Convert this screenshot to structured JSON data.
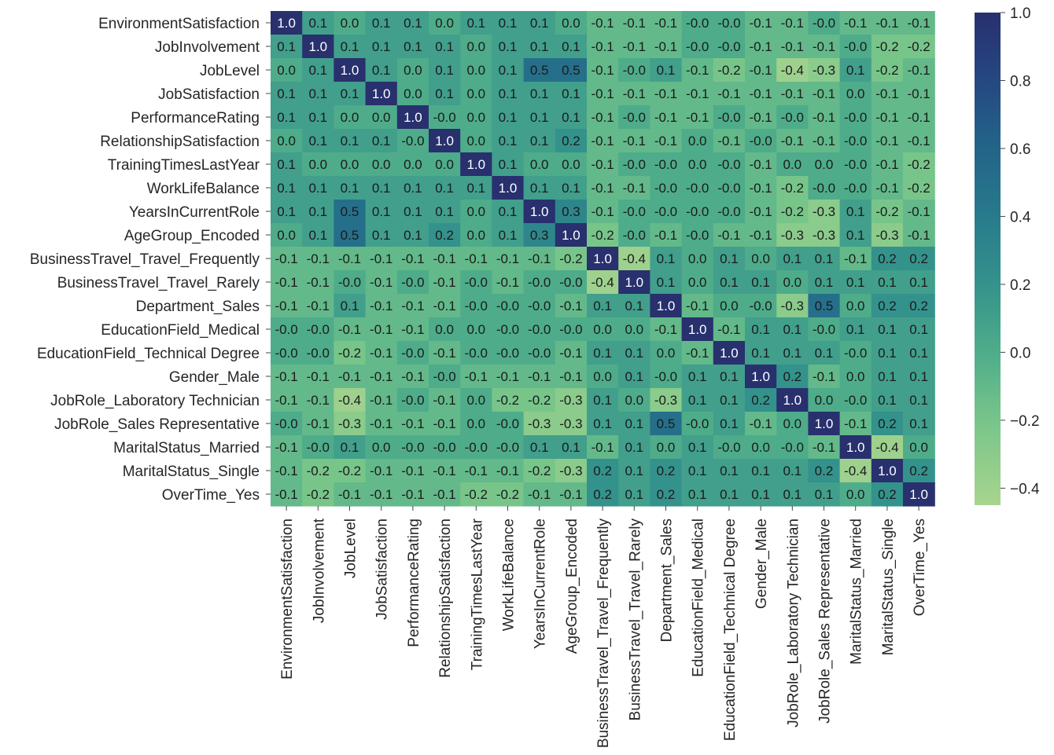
{
  "chart_data": {
    "type": "heatmap",
    "title": "",
    "xlabel": "",
    "ylabel": "",
    "labels": [
      "EnvironmentSatisfaction",
      "JobInvolvement",
      "JobLevel",
      "JobSatisfaction",
      "PerformanceRating",
      "RelationshipSatisfaction",
      "TrainingTimesLastYear",
      "WorkLifeBalance",
      "YearsInCurrentRole",
      "AgeGroup_Encoded",
      "BusinessTravel_Travel_Frequently",
      "BusinessTravel_Travel_Rarely",
      "Department_Sales",
      "EducationField_Medical",
      "EducationField_Technical Degree",
      "Gender_Male",
      "JobRole_Laboratory Technician",
      "JobRole_Sales Representative",
      "MaritalStatus_Married",
      "MaritalStatus_Single",
      "OverTime_Yes"
    ],
    "cell_text": [
      [
        "1.0",
        "0.1",
        "0.0",
        "0.1",
        "0.1",
        "0.0",
        "0.1",
        "0.1",
        "0.1",
        "0.0",
        "-0.1",
        "-0.1",
        "-0.1",
        "-0.0",
        "-0.0",
        "-0.1",
        "-0.1",
        "-0.0",
        "-0.1",
        "-0.1",
        "-0.1"
      ],
      [
        "0.1",
        "1.0",
        "0.1",
        "0.1",
        "0.1",
        "0.1",
        "0.0",
        "0.1",
        "0.1",
        "0.1",
        "-0.1",
        "-0.1",
        "-0.1",
        "-0.0",
        "-0.0",
        "-0.1",
        "-0.1",
        "-0.1",
        "-0.0",
        "-0.2",
        "-0.2"
      ],
      [
        "0.0",
        "0.1",
        "1.0",
        "0.1",
        "0.0",
        "0.1",
        "0.0",
        "0.1",
        "0.5",
        "0.5",
        "-0.1",
        "-0.0",
        "0.1",
        "-0.1",
        "-0.2",
        "-0.1",
        "-0.4",
        "-0.3",
        "0.1",
        "-0.2",
        "-0.1"
      ],
      [
        "0.1",
        "0.1",
        "0.1",
        "1.0",
        "0.0",
        "0.1",
        "0.0",
        "0.1",
        "0.1",
        "0.1",
        "-0.1",
        "-0.1",
        "-0.1",
        "-0.1",
        "-0.1",
        "-0.1",
        "-0.1",
        "-0.1",
        "0.0",
        "-0.1",
        "-0.1"
      ],
      [
        "0.1",
        "0.1",
        "0.0",
        "0.0",
        "1.0",
        "-0.0",
        "0.0",
        "0.1",
        "0.1",
        "0.1",
        "-0.1",
        "-0.0",
        "-0.1",
        "-0.1",
        "-0.0",
        "-0.1",
        "-0.0",
        "-0.1",
        "-0.0",
        "-0.1",
        "-0.1"
      ],
      [
        "0.0",
        "0.1",
        "0.1",
        "0.1",
        "-0.0",
        "1.0",
        "0.0",
        "0.1",
        "0.1",
        "0.2",
        "-0.1",
        "-0.1",
        "-0.1",
        "0.0",
        "-0.1",
        "-0.0",
        "-0.1",
        "-0.1",
        "-0.0",
        "-0.1",
        "-0.1"
      ],
      [
        "0.1",
        "0.0",
        "0.0",
        "0.0",
        "0.0",
        "0.0",
        "1.0",
        "0.1",
        "0.0",
        "0.0",
        "-0.1",
        "-0.0",
        "-0.0",
        "0.0",
        "-0.0",
        "-0.1",
        "0.0",
        "0.0",
        "-0.0",
        "-0.1",
        "-0.2"
      ],
      [
        "0.1",
        "0.1",
        "0.1",
        "0.1",
        "0.1",
        "0.1",
        "0.1",
        "1.0",
        "0.1",
        "0.1",
        "-0.1",
        "-0.1",
        "-0.0",
        "-0.0",
        "-0.0",
        "-0.1",
        "-0.2",
        "-0.0",
        "-0.0",
        "-0.1",
        "-0.2"
      ],
      [
        "0.1",
        "0.1",
        "0.5",
        "0.1",
        "0.1",
        "0.1",
        "0.0",
        "0.1",
        "1.0",
        "0.3",
        "-0.1",
        "-0.0",
        "-0.0",
        "-0.0",
        "-0.0",
        "-0.1",
        "-0.2",
        "-0.3",
        "0.1",
        "-0.2",
        "-0.1"
      ],
      [
        "0.0",
        "0.1",
        "0.5",
        "0.1",
        "0.1",
        "0.2",
        "0.0",
        "0.1",
        "0.3",
        "1.0",
        "-0.2",
        "-0.0",
        "-0.1",
        "-0.0",
        "-0.1",
        "-0.1",
        "-0.3",
        "-0.3",
        "0.1",
        "-0.3",
        "-0.1"
      ],
      [
        "-0.1",
        "-0.1",
        "-0.1",
        "-0.1",
        "-0.1",
        "-0.1",
        "-0.1",
        "-0.1",
        "-0.1",
        "-0.2",
        "1.0",
        "-0.4",
        "0.1",
        "0.0",
        "0.1",
        "0.0",
        "0.1",
        "0.1",
        "-0.1",
        "0.2",
        "0.2"
      ],
      [
        "-0.1",
        "-0.1",
        "-0.0",
        "-0.1",
        "-0.0",
        "-0.1",
        "-0.0",
        "-0.1",
        "-0.0",
        "-0.0",
        "-0.4",
        "1.0",
        "0.1",
        "0.0",
        "0.1",
        "0.1",
        "0.0",
        "0.1",
        "0.1",
        "0.1",
        "0.1"
      ],
      [
        "-0.1",
        "-0.1",
        "0.1",
        "-0.1",
        "-0.1",
        "-0.1",
        "-0.0",
        "-0.0",
        "-0.0",
        "-0.1",
        "0.1",
        "0.1",
        "1.0",
        "-0.1",
        "0.0",
        "-0.0",
        "-0.3",
        "0.5",
        "0.0",
        "0.2",
        "0.2"
      ],
      [
        "-0.0",
        "-0.0",
        "-0.1",
        "-0.1",
        "-0.1",
        "0.0",
        "0.0",
        "-0.0",
        "-0.0",
        "-0.0",
        "0.0",
        "0.0",
        "-0.1",
        "1.0",
        "-0.1",
        "0.1",
        "0.1",
        "-0.0",
        "0.1",
        "0.1",
        "0.1"
      ],
      [
        "-0.0",
        "-0.0",
        "-0.2",
        "-0.1",
        "-0.0",
        "-0.1",
        "-0.0",
        "-0.0",
        "-0.0",
        "-0.1",
        "0.1",
        "0.1",
        "0.0",
        "-0.1",
        "1.0",
        "0.1",
        "0.1",
        "0.1",
        "-0.0",
        "0.1",
        "0.1"
      ],
      [
        "-0.1",
        "-0.1",
        "-0.1",
        "-0.1",
        "-0.1",
        "-0.0",
        "-0.1",
        "-0.1",
        "-0.1",
        "-0.1",
        "0.0",
        "0.1",
        "-0.0",
        "0.1",
        "0.1",
        "1.0",
        "0.2",
        "-0.1",
        "0.0",
        "0.1",
        "0.1"
      ],
      [
        "-0.1",
        "-0.1",
        "-0.4",
        "-0.1",
        "-0.0",
        "-0.1",
        "0.0",
        "-0.2",
        "-0.2",
        "-0.3",
        "0.1",
        "0.0",
        "-0.3",
        "0.1",
        "0.1",
        "0.2",
        "1.0",
        "0.0",
        "-0.0",
        "0.1",
        "0.1"
      ],
      [
        "-0.0",
        "-0.1",
        "-0.3",
        "-0.1",
        "-0.1",
        "-0.1",
        "0.0",
        "-0.0",
        "-0.3",
        "-0.3",
        "0.1",
        "0.1",
        "0.5",
        "-0.0",
        "0.1",
        "-0.1",
        "0.0",
        "1.0",
        "-0.1",
        "0.2",
        "0.1"
      ],
      [
        "-0.1",
        "-0.0",
        "0.1",
        "0.0",
        "-0.0",
        "-0.0",
        "-0.0",
        "-0.0",
        "0.1",
        "0.1",
        "-0.1",
        "0.1",
        "0.0",
        "0.1",
        "-0.0",
        "0.0",
        "-0.0",
        "-0.1",
        "1.0",
        "-0.4",
        "0.0"
      ],
      [
        "-0.1",
        "-0.2",
        "-0.2",
        "-0.1",
        "-0.1",
        "-0.1",
        "-0.1",
        "-0.1",
        "-0.2",
        "-0.3",
        "0.2",
        "0.1",
        "0.2",
        "0.1",
        "0.1",
        "0.1",
        "0.1",
        "0.2",
        "-0.4",
        "1.0",
        "0.2"
      ],
      [
        "-0.1",
        "-0.2",
        "-0.1",
        "-0.1",
        "-0.1",
        "-0.1",
        "-0.2",
        "-0.2",
        "-0.1",
        "-0.1",
        "0.2",
        "0.1",
        "0.2",
        "0.1",
        "0.1",
        "0.1",
        "0.1",
        "0.1",
        "0.0",
        "0.2",
        "1.0"
      ]
    ],
    "colorbar": {
      "min": -0.45,
      "max": 1.0,
      "ticks": [
        "1.0",
        "0.8",
        "0.6",
        "0.4",
        "0.2",
        "0.0",
        "−0.2",
        "−0.4"
      ],
      "tick_values": [
        1.0,
        0.8,
        0.6,
        0.4,
        0.2,
        0.0,
        -0.2,
        -0.4
      ]
    },
    "colormap": "YlGnBu-like (light green to dark navy)",
    "color_low": "#a8d48e",
    "color_high": "#2b3172"
  }
}
